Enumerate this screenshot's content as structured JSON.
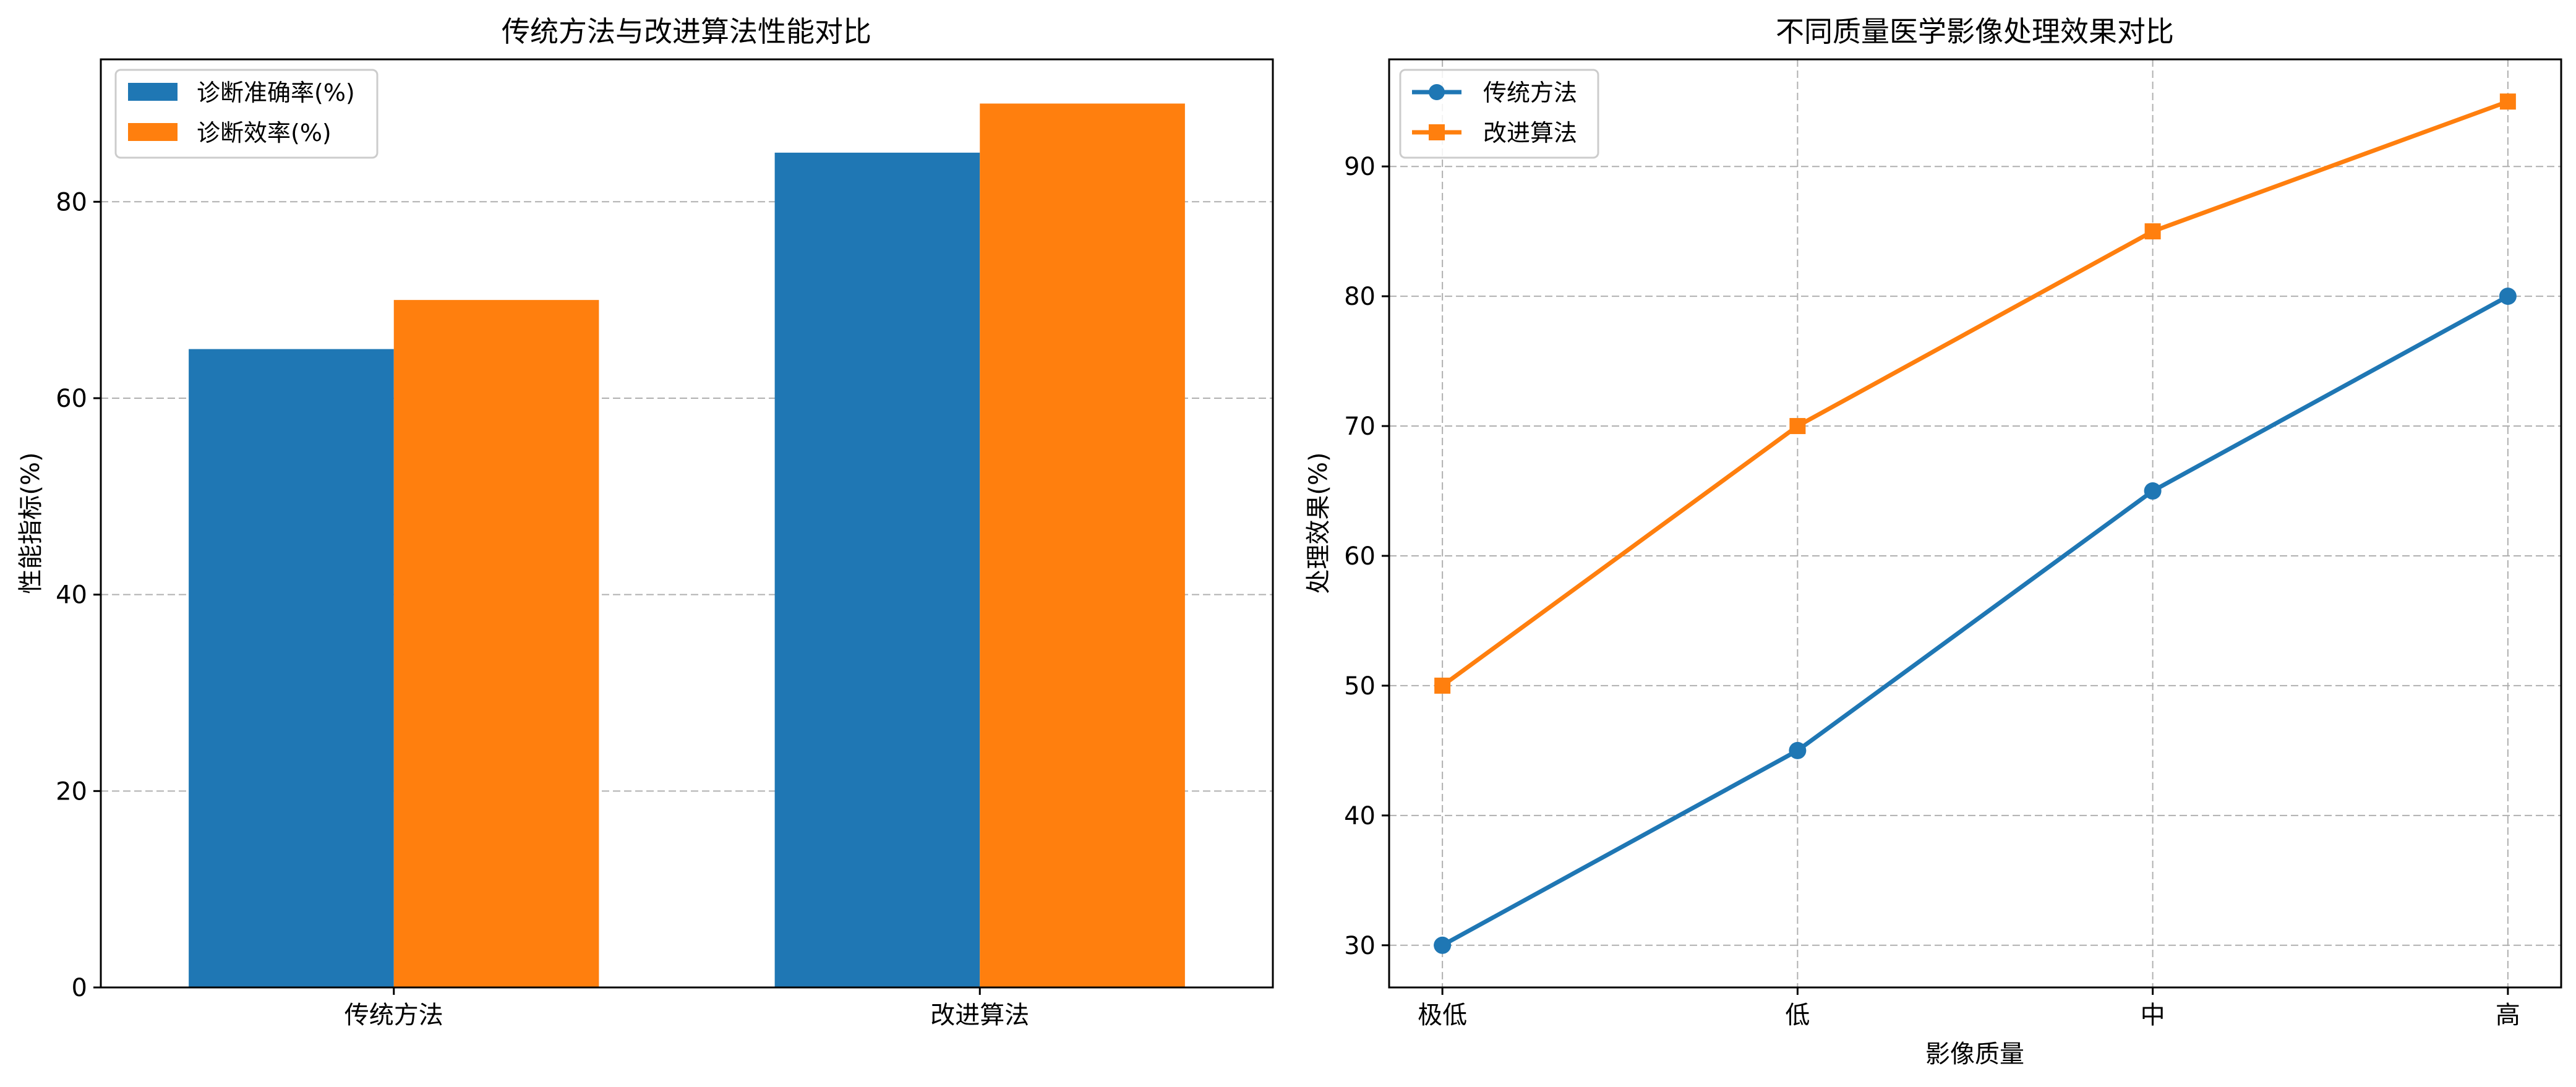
{
  "colors": {
    "series_a": "#1f77b4",
    "series_b": "#ff7f0e",
    "grid": "#b0b0b0",
    "axis": "#000000",
    "background": "#ffffff"
  },
  "chart_data": [
    {
      "type": "bar",
      "title": "传统方法与改进算法性能对比",
      "xlabel": "",
      "ylabel": "性能指标(%)",
      "categories": [
        "传统方法",
        "改进算法"
      ],
      "series": [
        {
          "name": "诊断准确率(%)",
          "values": [
            65,
            85
          ],
          "color": "#1f77b4"
        },
        {
          "name": "诊断效率(%)",
          "values": [
            70,
            90
          ],
          "color": "#ff7f0e"
        }
      ],
      "ylim": [
        0,
        94.5
      ],
      "yticks": [
        "0",
        "20",
        "40",
        "60",
        "80"
      ],
      "grid": "y-dashed",
      "legend": "top-left"
    },
    {
      "type": "line",
      "title": "不同质量医学影像处理效果对比",
      "xlabel": "影像质量",
      "ylabel": "处理效果(%)",
      "categories": [
        "极低",
        "低",
        "中",
        "高"
      ],
      "series": [
        {
          "name": "传统方法",
          "values": [
            30,
            45,
            65,
            80
          ],
          "color": "#1f77b4",
          "marker": "circle"
        },
        {
          "name": "改进算法",
          "values": [
            50,
            70,
            85,
            95
          ],
          "color": "#ff7f0e",
          "marker": "square"
        }
      ],
      "ylim": [
        26.75,
        98.25
      ],
      "yticks": [
        "30",
        "40",
        "50",
        "60",
        "70",
        "80",
        "90"
      ],
      "grid": "both-dashed",
      "legend": "top-left"
    }
  ]
}
